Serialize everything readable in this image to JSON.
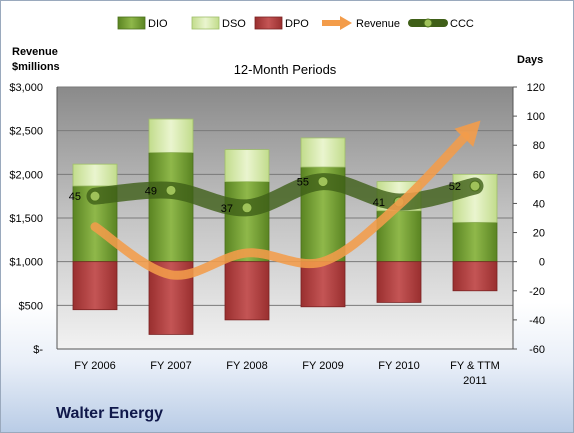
{
  "chart_data": {
    "type": "bar",
    "title": "12-Month Periods",
    "company": "Walter Energy",
    "left_axis": {
      "label_line1": "Revenue",
      "label_line2": "$millions",
      "range": [
        0,
        3000
      ],
      "ticks": [
        0,
        500,
        1000,
        1500,
        2000,
        2500,
        3000
      ],
      "tick_labels": [
        "$-",
        "$500",
        "$1,000",
        "$1,500",
        "$2,000",
        "$2,500",
        "$3,000"
      ]
    },
    "right_axis": {
      "label": "Days",
      "range": [
        -60,
        120
      ],
      "ticks": [
        -60,
        -40,
        -20,
        0,
        20,
        40,
        60,
        80,
        100,
        120
      ],
      "tick_labels": [
        "-60",
        "-40",
        "-20",
        "0",
        "20",
        "40",
        "60",
        "80",
        "100",
        "120"
      ]
    },
    "categories": [
      [
        "FY 2006"
      ],
      [
        "FY 2007"
      ],
      [
        "FY 2008"
      ],
      [
        "FY 2009"
      ],
      [
        "FY 2010"
      ],
      [
        "FY & TTM",
        "2011"
      ]
    ],
    "legend": [
      "DIO",
      "DSO",
      "DPO",
      "Revenue",
      "CCC"
    ],
    "series": [
      {
        "name": "DIO",
        "axis": "days",
        "values": [
          52,
          75,
          55,
          65,
          35,
          27
        ],
        "color": "#6f9a2e"
      },
      {
        "name": "DSO",
        "axis": "days",
        "values": [
          15,
          23,
          22,
          20,
          20,
          33
        ],
        "color": "#d8ebb0"
      },
      {
        "name": "DPO",
        "axis": "days",
        "values": [
          -33,
          -50,
          -40,
          -31,
          -28,
          -20
        ],
        "color": "#b03a3a"
      },
      {
        "name": "Revenue",
        "axis": "revenue",
        "values": [
          1400,
          850,
          1100,
          1000,
          1650,
          2550
        ],
        "color": "#f39c4a"
      },
      {
        "name": "CCC",
        "axis": "days",
        "values": [
          45,
          49,
          37,
          55,
          41,
          52
        ],
        "labels": [
          "45",
          "49",
          "37",
          "55",
          "41",
          "52"
        ],
        "color": "#4f7a1e"
      }
    ],
    "grid": true,
    "legend_position": "top"
  }
}
